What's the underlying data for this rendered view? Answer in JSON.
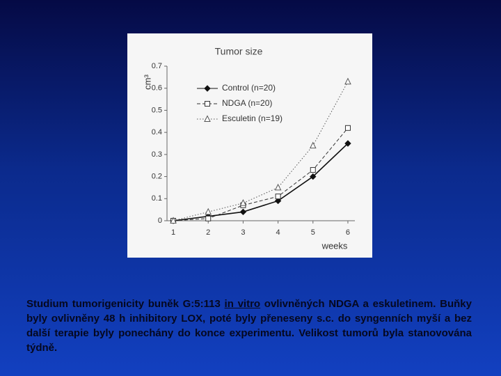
{
  "chart_data": {
    "type": "line",
    "title": "Tumor size",
    "y_label": "cm³",
    "x_label": "weeks",
    "x": [
      1,
      2,
      3,
      4,
      5,
      6
    ],
    "series": [
      {
        "name": "Control (n=20)",
        "color": "#111111",
        "marker": "diamond",
        "dash": "solid",
        "values": [
          0,
          0.02,
          0.04,
          0.09,
          0.2,
          0.35
        ]
      },
      {
        "name": "NDGA (n=20)",
        "color": "#333333",
        "marker": "square",
        "dash": "dashed",
        "values": [
          0,
          0.01,
          0.07,
          0.11,
          0.23,
          0.42
        ]
      },
      {
        "name": "Esculetin (n=19)",
        "color": "#555555",
        "marker": "triangle",
        "dash": "dotted",
        "values": [
          0,
          0.04,
          0.08,
          0.15,
          0.34,
          0.63
        ]
      }
    ],
    "xlim": [
      0.82,
      6.2
    ],
    "xticks": [
      1,
      2,
      3,
      4,
      5,
      6
    ],
    "ylim": [
      0,
      0.7
    ],
    "yticks": [
      0,
      0.1,
      0.2,
      0.3,
      0.4,
      0.5,
      0.6,
      0.7
    ]
  },
  "caption": {
    "before": "Studium tumorigenicity buněk G:5:113 ",
    "emphasis": "in vitro",
    "after": " ovlivněných NDGA a eskuletinem. Buňky byly ovlivněny 48 h inhibitory LOX, poté byly přeneseny s.c. do syngenních myší a bez další terapie byly ponechány do konce experimentu. Velikost tumorů byla stanovována týdně."
  }
}
